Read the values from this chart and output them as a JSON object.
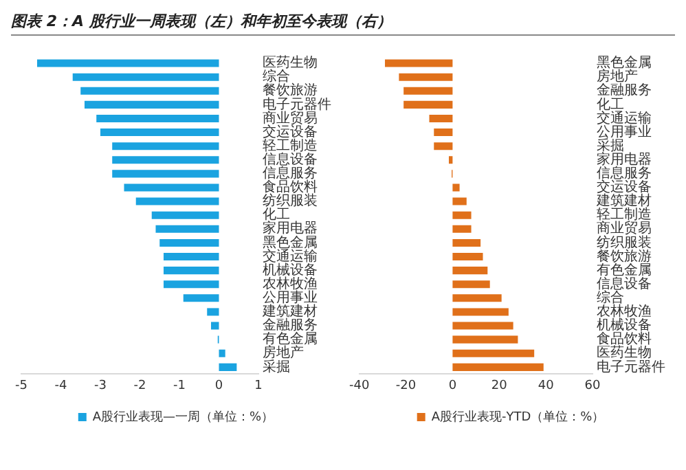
{
  "chart_data": [
    {
      "type": "bar",
      "title": "图表 2：A 股行业一周表现（左）和年初至今表现（右）",
      "orientation": "horizontal",
      "categories": [
        "医药生物",
        "综合",
        "餐饮旅游",
        "电子元器件",
        "商业贸易",
        "交运设备",
        "轻工制造",
        "信息设备",
        "信息服务",
        "食品饮料",
        "纺织服装",
        "化工",
        "家用电器",
        "黑色金属",
        "交通运输",
        "机械设备",
        "农林牧渔",
        "公用事业",
        "建筑建材",
        "金融服务",
        "有色金属",
        "房地产",
        "采掘"
      ],
      "series": [
        {
          "name": "A股行业表现—一周（单位：%）",
          "color": "#1aa3e0",
          "values": [
            -4.6,
            -3.7,
            -3.5,
            -3.4,
            -3.1,
            -3.0,
            -2.7,
            -2.7,
            -2.7,
            -2.4,
            -2.1,
            -1.7,
            -1.6,
            -1.5,
            -1.4,
            -1.4,
            -1.4,
            -0.9,
            -0.3,
            -0.2,
            -0.03,
            0.16,
            0.45
          ]
        }
      ],
      "xlim": [
        -5,
        1
      ],
      "xticks": [
        -5,
        -4,
        -3,
        -2,
        -1,
        0,
        1
      ],
      "grid": false,
      "legend": "bottom"
    },
    {
      "type": "bar",
      "orientation": "horizontal",
      "categories": [
        "黑色金属",
        "房地产",
        "金融服务",
        "化工",
        "交通运输",
        "公用事业",
        "采掘",
        "家用电器",
        "信息服务",
        "交运设备",
        "建筑建材",
        "轻工制造",
        "商业贸易",
        "纺织服装",
        "餐饮旅游",
        "有色金属",
        "信息设备",
        "综合",
        "农林牧渔",
        "机械设备",
        "食品饮料",
        "医药生物",
        "电子元器件"
      ],
      "series": [
        {
          "name": "A股行业表现-YTD（单位：%）",
          "color": "#e0701a",
          "values": [
            -29,
            -23,
            -21,
            -21,
            -10,
            -8,
            -8,
            -1.6,
            -0.4,
            3,
            6,
            8,
            8,
            12,
            13,
            15,
            16,
            21,
            24,
            26,
            28,
            35,
            39
          ]
        }
      ],
      "xlim": [
        -40,
        60
      ],
      "xticks": [
        -40,
        -20,
        0,
        20,
        40,
        60
      ],
      "grid": false,
      "legend": "bottom"
    }
  ]
}
